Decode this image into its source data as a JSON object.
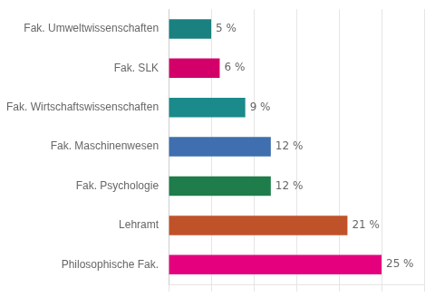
{
  "chart_data": {
    "type": "bar",
    "orientation": "horizontal",
    "categories": [
      "Philosophische Fak.",
      "Lehramt",
      "Fak. Psychologie",
      "Fak. Maschinenwesen",
      "Fak. Wirtschaftswissenschaften",
      "Fak. SLK",
      "Fak. Umweltwissenschaften"
    ],
    "values": [
      25,
      21,
      12,
      12,
      9,
      6,
      5
    ],
    "value_labels": [
      "25 %",
      "21 %",
      "12 %",
      "12 %",
      "9 %",
      "6 %",
      "5 %"
    ],
    "colors": [
      "#E5007D",
      "#C0522A",
      "#1E7D4B",
      "#3F6FAE",
      "#1A8A8A",
      "#D4006A",
      "#1A8080"
    ],
    "xlim": [
      0,
      30
    ],
    "xticks": [
      0,
      5,
      10,
      15,
      20,
      25,
      30
    ],
    "grid": true,
    "tick_labels": "y",
    "data_labels": true
  }
}
